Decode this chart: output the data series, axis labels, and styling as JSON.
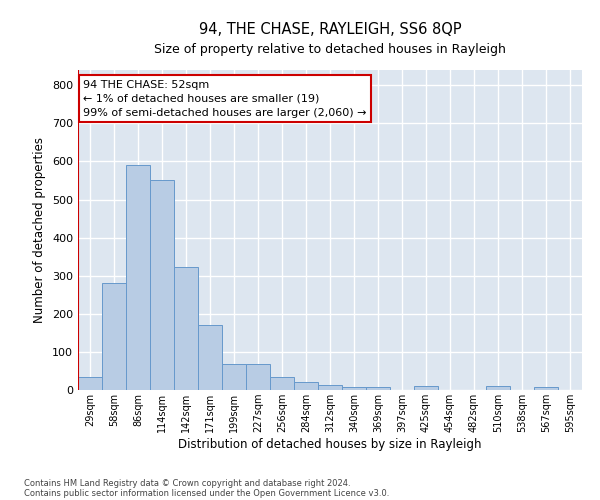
{
  "title": "94, THE CHASE, RAYLEIGH, SS6 8QP",
  "subtitle": "Size of property relative to detached houses in Rayleigh",
  "xlabel": "Distribution of detached houses by size in Rayleigh",
  "ylabel": "Number of detached properties",
  "categories": [
    "29sqm",
    "58sqm",
    "86sqm",
    "114sqm",
    "142sqm",
    "171sqm",
    "199sqm",
    "227sqm",
    "256sqm",
    "284sqm",
    "312sqm",
    "340sqm",
    "369sqm",
    "397sqm",
    "425sqm",
    "454sqm",
    "482sqm",
    "510sqm",
    "538sqm",
    "567sqm",
    "595sqm"
  ],
  "values": [
    35,
    280,
    590,
    550,
    323,
    170,
    68,
    68,
    35,
    20,
    12,
    8,
    8,
    0,
    10,
    0,
    0,
    10,
    0,
    8,
    0
  ],
  "bar_color": "#b8cce4",
  "bar_edge_color": "#6699cc",
  "background_color": "#dde6f0",
  "grid_color": "#ffffff",
  "annotation_box_text": "94 THE CHASE: 52sqm\n← 1% of detached houses are smaller (19)\n99% of semi-detached houses are larger (2,060) →",
  "annotation_box_color": "#ffffff",
  "annotation_box_edge_color": "#cc0000",
  "vline_color": "#cc0000",
  "ylim": [
    0,
    840
  ],
  "yticks": [
    0,
    100,
    200,
    300,
    400,
    500,
    600,
    700,
    800
  ],
  "footer_line1": "Contains HM Land Registry data © Crown copyright and database right 2024.",
  "footer_line2": "Contains public sector information licensed under the Open Government Licence v3.0."
}
